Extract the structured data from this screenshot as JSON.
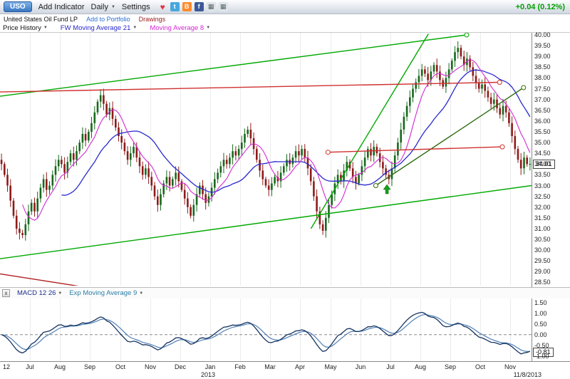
{
  "ui": {
    "caret": "▼"
  },
  "toolbar": {
    "ticker": "USO",
    "add_indicator_label": "Add Indicator",
    "timeframe_label": "Daily",
    "settings_label": "Settings",
    "price_change": "+0.04 (0.12%)",
    "icons": [
      {
        "name": "favorite-heart-icon",
        "glyph": "♥",
        "fg": "#e03545",
        "bg": "none"
      },
      {
        "name": "twitter-icon",
        "glyph": "t",
        "fg": "#ffffff",
        "bg": "#47a7dd"
      },
      {
        "name": "blog-icon",
        "glyph": "B",
        "fg": "#ffffff",
        "bg": "#ff8a2a"
      },
      {
        "name": "facebook-icon",
        "glyph": "f",
        "fg": "#ffffff",
        "bg": "#3b5998"
      },
      {
        "name": "chart-window-icon",
        "glyph": "▦",
        "fg": "#566",
        "bg": "#dfe5ea"
      },
      {
        "name": "new-window-icon",
        "glyph": "▦",
        "fg": "#566",
        "bg": "#dfe5ea"
      }
    ]
  },
  "header": {
    "title": "United States Oil Fund LP",
    "add_to_portfolio_label": "Add to Portfolio",
    "drawings_label": "Drawings"
  },
  "legend": {
    "price_history_label": "Price History",
    "ma21_label": "FW Moving Average 21",
    "ma8_label": "Moving Average 8"
  },
  "price_axis_labels": [
    "40.00",
    "39.50",
    "39.00",
    "38.50",
    "38.00",
    "37.50",
    "37.00",
    "36.50",
    "36.00",
    "35.50",
    "35.00",
    "34.50",
    "34.00",
    "33.50",
    "33.00",
    "32.50",
    "32.00",
    "31.50",
    "31.00",
    "30.50",
    "30.00",
    "29.50",
    "29.00",
    "28.50"
  ],
  "price_box": "34.01",
  "macd_panel": {
    "close_label": "x",
    "macd_label": "MACD 12 26",
    "signal_label": "Exp Moving Average 9",
    "axis_labels": [
      "1.50",
      "1.00",
      "0.50",
      "0.00",
      "-0.50",
      "-1.00"
    ],
    "value_box": "-0.81"
  },
  "x_axis": {
    "labels": [
      "12",
      "Jul",
      "Aug",
      "Sep",
      "Oct",
      "Nov",
      "Dec",
      "Jan",
      "Feb",
      "Mar",
      "Apr",
      "May",
      "Jun",
      "Jul",
      "Aug",
      "Sep",
      "Oct",
      "Nov"
    ],
    "year_label": "2013",
    "date_label": "11/8/2013"
  },
  "colors": {
    "up_candle": "#17691c",
    "down_candle": "#8e1b1b",
    "ma21": "#2929cf",
    "ma8": "#d42ad4",
    "macd_line": "#16335f",
    "macd_signal": "#4f7fb5",
    "grid": "#ececec"
  },
  "chart_data": {
    "type": "candlestick",
    "symbol": "USO",
    "title": "United States Oil Fund LP, Daily",
    "ylim": [
      28.5,
      40.0
    ],
    "closes": [
      34.0,
      33.5,
      33.0,
      32.3,
      31.6,
      31.0,
      30.8,
      30.7,
      31.2,
      31.8,
      32.2,
      31.8,
      32.4,
      32.9,
      33.3,
      32.8,
      33.0,
      33.5,
      33.9,
      34.2,
      34.0,
      33.6,
      34.1,
      34.5,
      34.2,
      34.6,
      35.0,
      35.4,
      35.1,
      35.5,
      35.9,
      36.4,
      36.9,
      37.2,
      36.8,
      36.3,
      36.6,
      36.1,
      35.7,
      35.3,
      35.0,
      34.6,
      34.2,
      34.5,
      34.8,
      34.3,
      33.9,
      33.5,
      33.8,
      33.4,
      33.0,
      32.5,
      32.1,
      32.6,
      33.1,
      33.4,
      33.0,
      33.3,
      33.6,
      33.2,
      32.8,
      32.4,
      32.0,
      31.6,
      32.1,
      32.6,
      33.0,
      32.6,
      32.2,
      32.5,
      32.9,
      33.3,
      33.6,
      33.9,
      34.2,
      34.0,
      34.3,
      34.6,
      34.4,
      34.7,
      35.0,
      35.4,
      35.6,
      35.2,
      34.7,
      34.2,
      33.7,
      33.3,
      33.0,
      32.8,
      33.1,
      33.4,
      33.2,
      33.6,
      33.9,
      34.2,
      34.0,
      34.3,
      34.6,
      34.4,
      34.7,
      34.3,
      33.8,
      33.2,
      32.5,
      31.8,
      31.2,
      30.9,
      31.5,
      32.1,
      32.6,
      33.1,
      33.5,
      33.2,
      33.7,
      34.1,
      33.8,
      33.4,
      33.1,
      33.5,
      33.9,
      34.3,
      34.7,
      34.4,
      34.8,
      34.5,
      34.1,
      33.8,
      33.5,
      33.3,
      33.8,
      34.4,
      35.0,
      35.6,
      36.2,
      36.7,
      37.1,
      37.5,
      37.8,
      38.1,
      38.4,
      38.2,
      37.9,
      38.3,
      38.6,
      38.3,
      37.9,
      37.6,
      38.0,
      38.4,
      38.8,
      39.2,
      39.4,
      39.0,
      38.6,
      38.9,
      38.5,
      38.1,
      37.8,
      37.5,
      37.7,
      37.4,
      37.1,
      36.8,
      37.0,
      36.6,
      36.3,
      36.7,
      36.4,
      35.9,
      35.3,
      34.7,
      34.2,
      33.8,
      34.3,
      34.0,
      34.01
    ],
    "overlays": [
      {
        "name": "FW Moving Average 21",
        "period": 21,
        "color": "#2929cf"
      },
      {
        "name": "Moving Average 8",
        "period": 8,
        "color": "#d42ad4"
      }
    ],
    "macd": {
      "fast": 12,
      "slow": 26,
      "signal": 9,
      "range": [
        -1.0,
        1.5
      ],
      "current": -0.81
    },
    "drawings": [
      {
        "name": "channel-upper-green",
        "color": "#00a800",
        "x1": 0.0,
        "p1": 37.15,
        "x2": 0.878,
        "p2": 40.0,
        "h1": false,
        "h2": true
      },
      {
        "name": "channel-lower-green",
        "color": "#00a800",
        "x1": 0.0,
        "p1": 29.6,
        "x2": 1.0,
        "p2": 33.0,
        "h1": false,
        "h2": false
      },
      {
        "name": "steep-trendline-green",
        "color": "#00a800",
        "x1": 0.585,
        "p1": 31.0,
        "x2": 0.806,
        "p2": 40.05,
        "h1": false,
        "h2": false
      },
      {
        "name": "trendline-dark-green",
        "color": "#2f6b10",
        "x1": 0.707,
        "p1": 33.0,
        "x2": 0.985,
        "p2": 37.55,
        "h1": true,
        "h2": true
      },
      {
        "name": "resistance-upper-red",
        "color": "#d03030",
        "x1": 0.0,
        "p1": 37.35,
        "x2": 0.94,
        "p2": 37.8,
        "h1": false,
        "h2": true
      },
      {
        "name": "resistance-mid-red",
        "color": "#d03030",
        "x1": 0.617,
        "p1": 34.55,
        "x2": 0.945,
        "p2": 34.8,
        "h1": true,
        "h2": true
      },
      {
        "name": "trendline-lower-left-red",
        "color": "#b02020",
        "x1": 0.0,
        "p1": 28.9,
        "x2": 0.155,
        "p2": 28.3,
        "h1": false,
        "h2": false
      }
    ],
    "annotations": [
      {
        "type": "up-arrow",
        "x": 0.728,
        "p": 33.05,
        "color": "#18a018"
      }
    ]
  }
}
